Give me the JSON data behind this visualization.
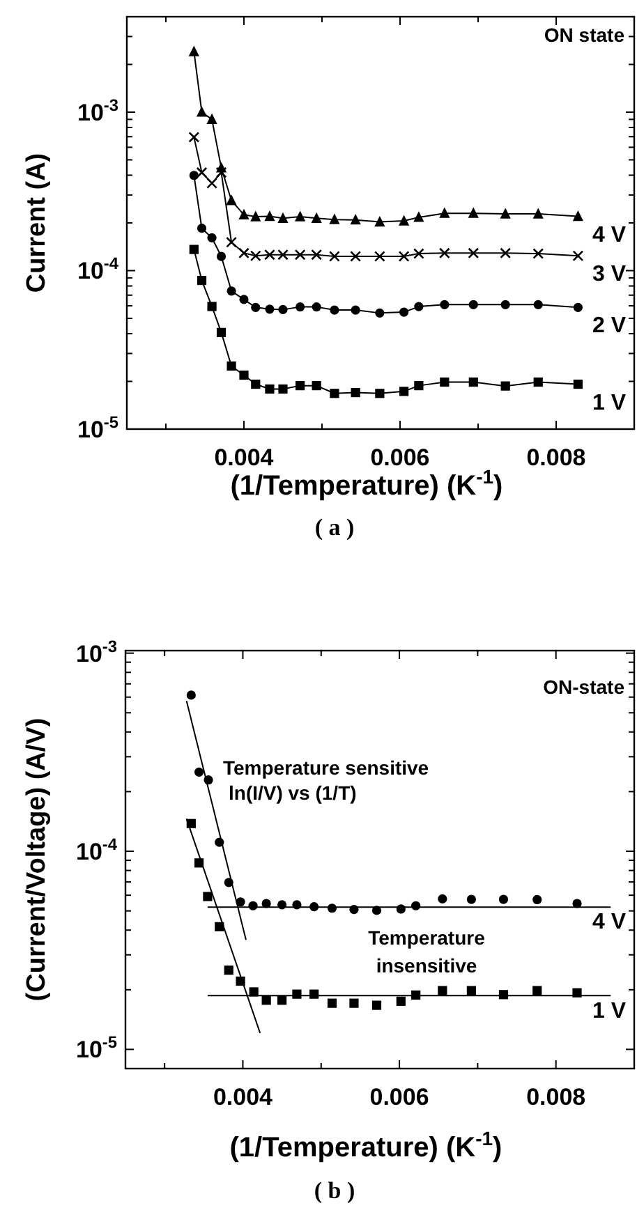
{
  "chart_data": [
    {
      "type": "line",
      "title": "( a )",
      "xlabel": "(1/Temperature) (K$^{-1}$)",
      "ylabel": "Current (A)",
      "log": "y",
      "legend": "right",
      "grid": false,
      "xlim": [
        0.0025,
        0.009
      ],
      "xticks": [
        {
          "value": 0.003,
          "label": null
        },
        0.004,
        {
          "value": 0.005,
          "label": null
        },
        0.006,
        {
          "value": 0.007,
          "label": null
        },
        0.008,
        {
          "value": 0.009,
          "label": null
        }
      ],
      "ylim": [
        1e-05,
        0.004
      ],
      "yticks": [
        {
          "value": 1e-05,
          "label": "10$^{-5}$"
        },
        {
          "value": 2e-05,
          "label": null
        },
        {
          "value": 3e-05,
          "label": null
        },
        {
          "value": 4e-05,
          "label": null
        },
        {
          "value": 5e-05,
          "label": null
        },
        {
          "value": 6e-05,
          "label": null
        },
        {
          "value": 7e-05,
          "label": null
        },
        {
          "value": 8e-05,
          "label": null
        },
        {
          "value": 9e-05,
          "label": null
        },
        {
          "value": 0.0001,
          "label": "10$^{-4}$"
        },
        {
          "value": 0.0002,
          "label": null
        },
        {
          "value": 0.0003,
          "label": null
        },
        {
          "value": 0.0004,
          "label": null
        },
        {
          "value": 0.0005,
          "label": null
        },
        {
          "value": 0.0006,
          "label": null
        },
        {
          "value": 0.0007,
          "label": null
        },
        {
          "value": 0.0008,
          "label": null
        },
        {
          "value": 0.0009,
          "label": null
        },
        {
          "value": 0.001,
          "label": "10$^{-3}$"
        },
        {
          "value": 0.002,
          "label": null
        },
        {
          "value": 0.003,
          "label": null
        }
      ],
      "annotations": [
        "ON state"
      ],
      "x": [
        0.00336,
        0.00346,
        0.00359,
        0.00371,
        0.00384,
        0.004,
        0.00415,
        0.00433,
        0.0045,
        0.00472,
        0.00493,
        0.00516,
        0.00543,
        0.00574,
        0.00605,
        0.00624,
        0.00657,
        0.00694,
        0.00735,
        0.00777,
        0.00828
      ],
      "series": [
        {
          "name": "4 V",
          "color": "#000000",
          "marker": "triangle",
          "values": [
            0.00241,
            0.001,
            0.0009,
            0.000445,
            0.000277,
            0.000225,
            0.000219,
            0.00022,
            0.000214,
            0.000219,
            0.000214,
            0.00021,
            0.000209,
            0.000203,
            0.000206,
            0.000217,
            0.00023,
            0.00023,
            0.000228,
            0.000228,
            0.00022
          ]
        },
        {
          "name": "3 V",
          "color": "#000000",
          "marker": "cross",
          "values": [
            0.000695,
            0.000416,
            0.000356,
            0.000416,
            0.000151,
            0.000129,
            0.000124,
            0.000126,
            0.000126,
            0.000126,
            0.000126,
            0.000123,
            0.000123,
            0.000123,
            0.000123,
            0.000128,
            0.000129,
            0.000129,
            0.000129,
            0.000128,
            0.000124
          ]
        },
        {
          "name": "2 V",
          "color": "#000000",
          "marker": "circle",
          "values": [
            0.000399,
            0.000185,
            0.000161,
            0.000123,
            7.43e-05,
            6.58e-05,
            5.86e-05,
            5.71e-05,
            5.68e-05,
            5.9e-05,
            5.9e-05,
            5.64e-05,
            5.64e-05,
            5.4e-05,
            5.47e-05,
            5.93e-05,
            6.1e-05,
            6.1e-05,
            6.1e-05,
            6.1e-05,
            5.86e-05
          ]
        },
        {
          "name": "1 V",
          "color": "#000000",
          "marker": "square",
          "values": [
            0.000136,
            8.67e-05,
            5.94e-05,
            4.07e-05,
            2.5e-05,
            2.19e-05,
            1.92e-05,
            1.79e-05,
            1.79e-05,
            1.88e-05,
            1.88e-05,
            1.68e-05,
            1.7e-05,
            1.68e-05,
            1.73e-05,
            1.88e-05,
            1.98e-05,
            1.98e-05,
            1.87e-05,
            1.98e-05,
            1.92e-05
          ]
        }
      ]
    },
    {
      "type": "scatter",
      "title": "( b )",
      "xlabel": "(1/Temperature) (K$^{-1}$)",
      "ylabel": "(Current/Voltage) (A/V)",
      "log": "y",
      "legend": "right",
      "grid": false,
      "xlim": [
        0.0025,
        0.009
      ],
      "xticks": [
        {
          "value": 0.003,
          "label": null
        },
        0.004,
        {
          "value": 0.005,
          "label": null
        },
        0.006,
        {
          "value": 0.007,
          "label": null
        },
        0.008,
        {
          "value": 0.009,
          "label": null
        }
      ],
      "ylim": [
        8e-06,
        0.00103
      ],
      "yticks": [
        {
          "value": 1e-05,
          "label": "10$^{-5}$"
        },
        {
          "value": 2e-05,
          "label": null
        },
        {
          "value": 3e-05,
          "label": null
        },
        {
          "value": 4e-05,
          "label": null
        },
        {
          "value": 5e-05,
          "label": null
        },
        {
          "value": 6e-05,
          "label": null
        },
        {
          "value": 7e-05,
          "label": null
        },
        {
          "value": 8e-05,
          "label": null
        },
        {
          "value": 9e-05,
          "label": null
        },
        {
          "value": 0.0001,
          "label": "10$^{-4}$"
        },
        {
          "value": 0.0002,
          "label": null
        },
        {
          "value": 0.0003,
          "label": null
        },
        {
          "value": 0.0004,
          "label": null
        },
        {
          "value": 0.0005,
          "label": null
        },
        {
          "value": 0.0006,
          "label": null
        },
        {
          "value": 0.0007,
          "label": null
        },
        {
          "value": 0.0008,
          "label": null
        },
        {
          "value": 0.0009,
          "label": null
        },
        {
          "value": 0.001,
          "label": "10$^{-3}$"
        }
      ],
      "annotations": [
        "ON-state",
        "Temperature sensitive",
        "ln(I/V) vs (1/T)",
        "Temperature",
        "insensitive"
      ],
      "series": [
        {
          "name": "4 V",
          "color": "#000000",
          "marker": "circle",
          "x": [
            0.00334,
            0.00344,
            0.00356,
            0.0037,
            0.00382,
            0.00397,
            0.00413,
            0.0043,
            0.0045,
            0.00469,
            0.00491,
            0.00514,
            0.00542,
            0.00571,
            0.00602,
            0.00621,
            0.00655,
            0.00692,
            0.00733,
            0.00776,
            0.00827
          ],
          "values": [
            0.000614,
            0.000251,
            0.000229,
            0.000111,
            6.96e-05,
            5.55e-05,
            5.31e-05,
            5.45e-05,
            5.37e-05,
            5.37e-05,
            5.25e-05,
            5.16e-05,
            5.08e-05,
            5.03e-05,
            5.11e-05,
            5.31e-05,
            5.75e-05,
            5.72e-05,
            5.72e-05,
            5.7e-05,
            5.45e-05
          ]
        },
        {
          "name": "1 V",
          "color": "#000000",
          "marker": "square",
          "x": [
            0.00334,
            0.00344,
            0.00355,
            0.0037,
            0.00382,
            0.00397,
            0.00414,
            0.0043,
            0.0045,
            0.00469,
            0.00491,
            0.00514,
            0.00542,
            0.00571,
            0.00602,
            0.00621,
            0.00655,
            0.00692,
            0.00733,
            0.00776,
            0.00827
          ],
          "values": [
            0.000138,
            8.73e-05,
            5.91e-05,
            4.16e-05,
            2.51e-05,
            2.21e-05,
            1.95e-05,
            1.77e-05,
            1.77e-05,
            1.9e-05,
            1.9e-05,
            1.71e-05,
            1.71e-05,
            1.67e-05,
            1.75e-05,
            1.88e-05,
            1.98e-05,
            1.98e-05,
            1.89e-05,
            1.98e-05,
            1.93e-05
          ]
        },
        {
          "type": "line",
          "color": "#000000",
          "marker": "none",
          "x": [
            0.00328,
            0.00404
          ],
          "values": [
            0.000575,
            3.57e-05
          ]
        },
        {
          "type": "line",
          "color": "#000000",
          "marker": "none",
          "x": [
            0.00355,
            0.0087
          ],
          "values": [
            5.22e-05,
            5.22e-05
          ]
        },
        {
          "type": "line",
          "color": "#000000",
          "marker": "none",
          "x": [
            0.00328,
            0.00422
          ],
          "values": [
            0.000146,
            1.21e-05
          ]
        },
        {
          "type": "line",
          "color": "#000000",
          "marker": "none",
          "x": [
            0.00355,
            0.0087
          ],
          "values": [
            1.87e-05,
            1.87e-05
          ]
        }
      ]
    }
  ]
}
